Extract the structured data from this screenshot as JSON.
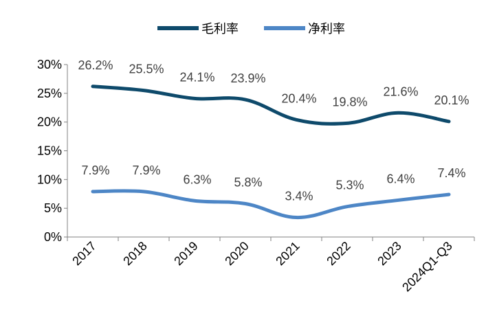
{
  "chart_data": {
    "type": "line",
    "categories": [
      "2017",
      "2018",
      "2019",
      "2020",
      "2021",
      "2022",
      "2023",
      "2024Q1-Q3"
    ],
    "series": [
      {
        "name": "毛利率",
        "color": "#0E4A6B",
        "values": [
          26.2,
          25.5,
          24.1,
          23.9,
          20.4,
          19.8,
          21.6,
          20.1
        ],
        "labels": [
          "26.2%",
          "25.5%",
          "24.1%",
          "23.9%",
          "20.4%",
          "19.8%",
          "21.6%",
          "20.1%"
        ]
      },
      {
        "name": "净利率",
        "color": "#4D86C6",
        "values": [
          7.9,
          7.9,
          6.3,
          5.8,
          3.4,
          5.3,
          6.4,
          7.4
        ],
        "labels": [
          "7.9%",
          "7.9%",
          "6.3%",
          "5.8%",
          "3.4%",
          "5.3%",
          "6.4%",
          "7.4%"
        ]
      }
    ],
    "ylim": [
      0,
      30
    ],
    "yticks": [
      "0%",
      "5%",
      "10%",
      "15%",
      "20%",
      "25%",
      "30%"
    ],
    "ytick_values": [
      0,
      5,
      10,
      15,
      20,
      25,
      30
    ],
    "legend_position": "top-center",
    "grid": false
  }
}
